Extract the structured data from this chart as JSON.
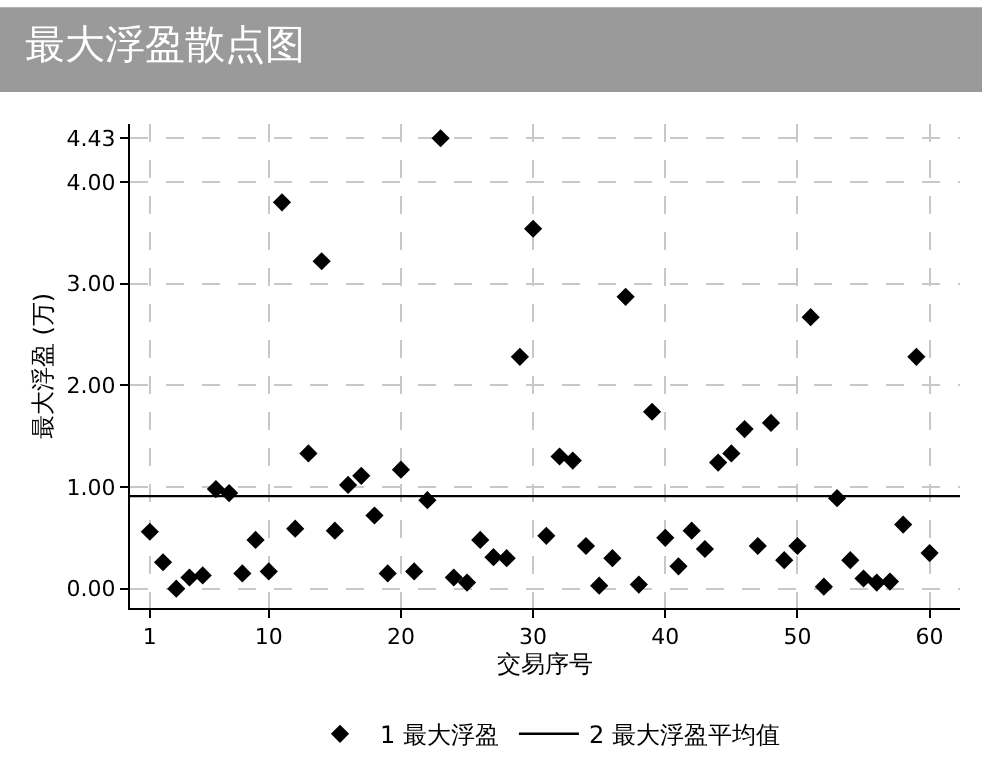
{
  "chart_data": {
    "type": "scatter",
    "title": "最大浮盈散点图",
    "xlabel": "交易序号",
    "ylabel": "最大浮盈 (万)",
    "x": [
      1,
      2,
      3,
      4,
      5,
      6,
      7,
      8,
      9,
      10,
      11,
      12,
      13,
      14,
      15,
      16,
      17,
      18,
      19,
      20,
      21,
      22,
      23,
      24,
      25,
      26,
      27,
      28,
      29,
      30,
      31,
      32,
      33,
      34,
      35,
      36,
      37,
      38,
      39,
      40,
      41,
      42,
      43,
      44,
      45,
      46,
      47,
      48,
      49,
      50,
      51,
      52,
      53,
      54,
      55,
      56,
      57,
      58,
      59,
      60
    ],
    "series": [
      {
        "name": "1 最大浮盈",
        "color": "#000000",
        "marker": "diamond",
        "values": [
          0.56,
          0.26,
          0.0,
          0.11,
          0.13,
          0.98,
          0.94,
          0.15,
          0.48,
          0.17,
          3.8,
          0.59,
          1.33,
          3.22,
          0.57,
          1.02,
          1.11,
          0.72,
          0.15,
          1.17,
          0.17,
          0.87,
          4.43,
          0.11,
          0.06,
          0.48,
          0.31,
          0.3,
          2.28,
          3.54,
          0.52,
          1.3,
          1.26,
          0.42,
          0.03,
          0.3,
          2.87,
          0.04,
          1.74,
          0.5,
          0.22,
          0.57,
          0.39,
          1.24,
          1.33,
          1.57,
          0.42,
          1.63,
          0.28,
          0.42,
          2.67,
          0.02,
          0.89,
          0.28,
          0.1,
          0.06,
          0.07,
          0.63,
          2.28,
          0.35
        ]
      },
      {
        "name": "2 最大浮盈平均值",
        "type": "line",
        "color": "#000000",
        "marker": "none",
        "line_style": "solid",
        "x": [
          -0.5,
          62.3
        ],
        "values": [
          0.91,
          0.91
        ]
      }
    ],
    "xlim": [
      -0.5,
      62.3
    ],
    "ylim": [
      -0.19,
      4.57
    ],
    "xticks": [
      1,
      10,
      20,
      30,
      40,
      50,
      60
    ],
    "yticks": [
      {
        "value": 0,
        "label": "0.00"
      },
      {
        "value": 1,
        "label": "1.00"
      },
      {
        "value": 2,
        "label": "2.00"
      },
      {
        "value": 3,
        "label": "3.00"
      },
      {
        "value": 4,
        "label": "4.00"
      },
      {
        "value": 4.43,
        "label": "4.43"
      }
    ],
    "grid": true,
    "legend": "bottom"
  }
}
